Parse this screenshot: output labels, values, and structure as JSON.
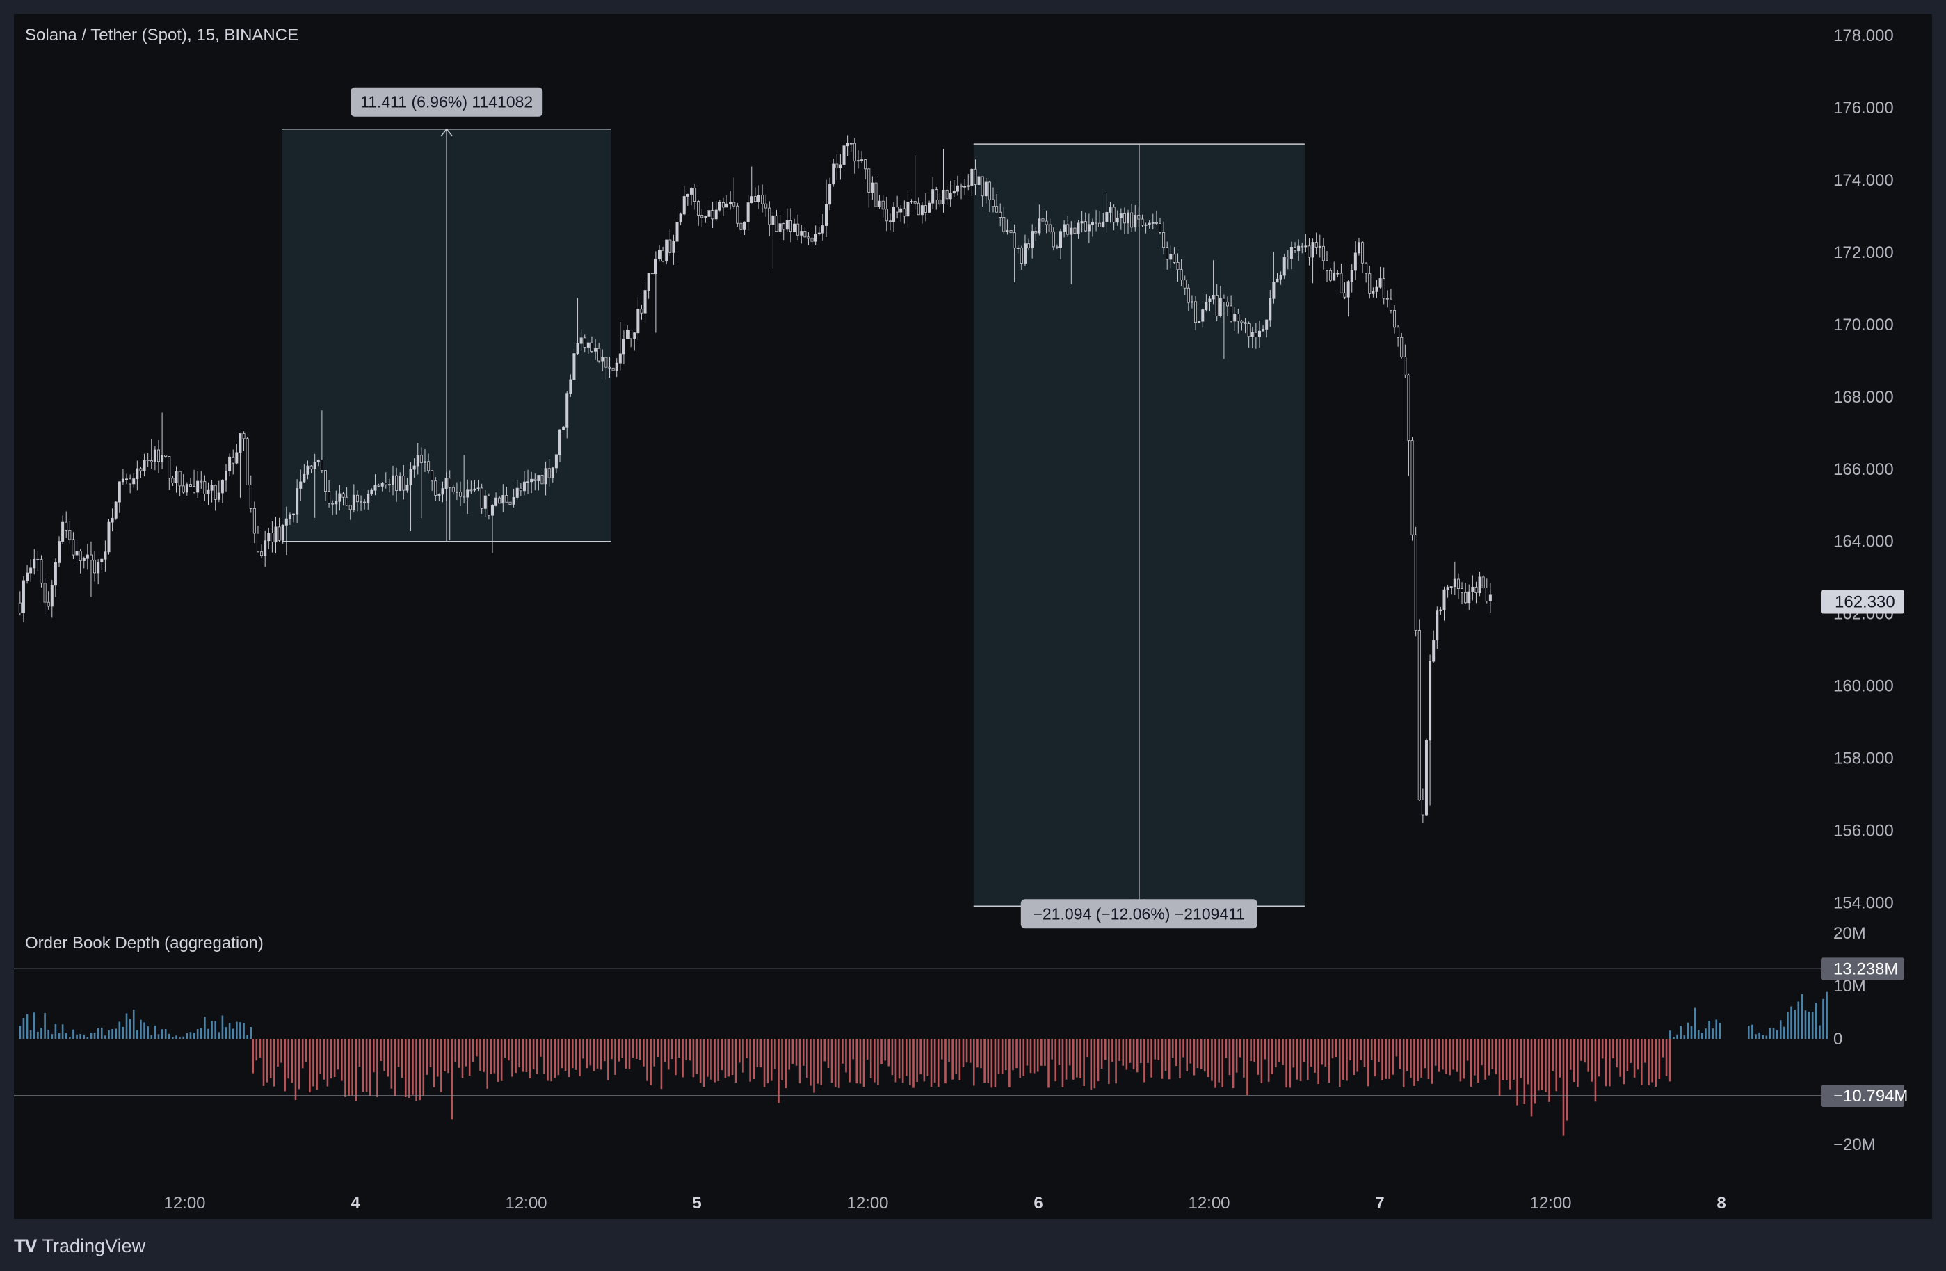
{
  "app": {
    "brand": "TradingView",
    "brand_logo": "TV",
    "symbol_title": "Solana / Tether (Spot), 15, BINANCE"
  },
  "colors": {
    "background": "#0e0f13",
    "frame": "#1e222d",
    "candle": "#c9ccd4",
    "measure_box": "#19242a",
    "measure_line": "#c8cbd2",
    "depth_bid": "#4a82a8",
    "depth_ask": "#b5565a",
    "pill": "#b2b5be",
    "pill_dark": "#5d606b"
  },
  "chart_data": [
    {
      "type": "candlestick",
      "title": "Solana / Tether (Spot), 15, BINANCE",
      "y_axis_ticks": [
        "178.000",
        "176.000",
        "174.000",
        "172.000",
        "170.000",
        "168.000",
        "166.000",
        "164.000",
        "162.000",
        "160.000",
        "158.000",
        "156.000",
        "154.000"
      ],
      "ylim": [
        153.2,
        178.6
      ],
      "x_axis_ticks": [
        {
          "label": "12:00",
          "t": 0.5,
          "bold": false
        },
        {
          "label": "4",
          "t": 1.0,
          "bold": true
        },
        {
          "label": "12:00",
          "t": 1.5,
          "bold": false
        },
        {
          "label": "5",
          "t": 2.0,
          "bold": true
        },
        {
          "label": "12:00",
          "t": 2.5,
          "bold": false
        },
        {
          "label": "6",
          "t": 3.0,
          "bold": true
        },
        {
          "label": "12:00",
          "t": 3.5,
          "bold": false
        },
        {
          "label": "7",
          "t": 4.0,
          "bold": true
        },
        {
          "label": "12:00",
          "t": 4.5,
          "bold": false
        },
        {
          "label": "8",
          "t": 5.0,
          "bold": true
        }
      ],
      "x_range_days": [
        0.018,
        4.33
      ],
      "last_price": "162.330",
      "price_path": [
        [
          0.02,
          162.8
        ],
        [
          0.07,
          163.4
        ],
        [
          0.1,
          162.0
        ],
        [
          0.14,
          164.7
        ],
        [
          0.18,
          163.6
        ],
        [
          0.25,
          163.2
        ],
        [
          0.3,
          165.4
        ],
        [
          0.35,
          165.6
        ],
        [
          0.42,
          166.5
        ],
        [
          0.48,
          165.6
        ],
        [
          0.55,
          165.4
        ],
        [
          0.6,
          165.2
        ],
        [
          0.63,
          166.1
        ],
        [
          0.67,
          166.9
        ],
        [
          0.71,
          163.5
        ],
        [
          0.75,
          164.2
        ],
        [
          0.79,
          164.2
        ],
        [
          0.84,
          165.6
        ],
        [
          0.88,
          166.4
        ],
        [
          0.92,
          165.2
        ],
        [
          0.97,
          165.0
        ],
        [
          1.03,
          165.2
        ],
        [
          1.09,
          165.8
        ],
        [
          1.14,
          165.5
        ],
        [
          1.19,
          166.4
        ],
        [
          1.24,
          165.4
        ],
        [
          1.29,
          165.6
        ],
        [
          1.35,
          165.3
        ],
        [
          1.39,
          164.9
        ],
        [
          1.44,
          165.2
        ],
        [
          1.49,
          165.4
        ],
        [
          1.54,
          165.8
        ],
        [
          1.58,
          166.1
        ],
        [
          1.61,
          167.4
        ],
        [
          1.64,
          169.3
        ],
        [
          1.68,
          169.7
        ],
        [
          1.71,
          169.1
        ],
        [
          1.75,
          168.6
        ],
        [
          1.79,
          169.5
        ],
        [
          1.83,
          170.3
        ],
        [
          1.87,
          171.6
        ],
        [
          1.91,
          172.1
        ],
        [
          1.94,
          172.5
        ],
        [
          1.97,
          173.8
        ],
        [
          2.01,
          173.2
        ],
        [
          2.05,
          173.0
        ],
        [
          2.09,
          173.6
        ],
        [
          2.13,
          172.8
        ],
        [
          2.17,
          173.5
        ],
        [
          2.22,
          172.9
        ],
        [
          2.27,
          172.6
        ],
        [
          2.31,
          172.4
        ],
        [
          2.36,
          172.6
        ],
        [
          2.4,
          174.2
        ],
        [
          2.44,
          174.9
        ],
        [
          2.48,
          174.4
        ],
        [
          2.52,
          173.6
        ],
        [
          2.56,
          173.0
        ],
        [
          2.6,
          173.1
        ],
        [
          2.65,
          173.3
        ],
        [
          2.7,
          173.5
        ],
        [
          2.75,
          173.9
        ],
        [
          2.8,
          174.1
        ],
        [
          2.86,
          173.6
        ],
        [
          2.9,
          172.8
        ],
        [
          2.95,
          171.9
        ],
        [
          3.0,
          172.8
        ],
        [
          3.05,
          172.2
        ],
        [
          3.1,
          172.8
        ],
        [
          3.15,
          172.5
        ],
        [
          3.2,
          173.1
        ],
        [
          3.25,
          173.0
        ],
        [
          3.3,
          172.7
        ],
        [
          3.35,
          172.6
        ],
        [
          3.38,
          171.9
        ],
        [
          3.42,
          171.0
        ],
        [
          3.46,
          170.2
        ],
        [
          3.5,
          170.6
        ],
        [
          3.55,
          170.4
        ],
        [
          3.59,
          170.1
        ],
        [
          3.63,
          169.6
        ],
        [
          3.67,
          170.3
        ],
        [
          3.71,
          171.6
        ],
        [
          3.76,
          172.2
        ],
        [
          3.81,
          172.1
        ],
        [
          3.86,
          171.4
        ],
        [
          3.9,
          170.9
        ],
        [
          3.94,
          172.4
        ],
        [
          3.97,
          170.9
        ],
        [
          4.0,
          171.2
        ],
        [
          4.03,
          170.3
        ],
        [
          4.06,
          169.7
        ],
        [
          4.08,
          167.9
        ],
        [
          4.11,
          160.4
        ],
        [
          4.12,
          154.2
        ],
        [
          4.13,
          157.5
        ],
        [
          4.15,
          161.2
        ],
        [
          4.18,
          162.4
        ],
        [
          4.22,
          162.7
        ],
        [
          4.26,
          162.4
        ],
        [
          4.29,
          162.8
        ],
        [
          4.33,
          162.3
        ]
      ],
      "annotations": [
        {
          "label": "11.411 (6.96%) 1141082",
          "x_start": 0.786,
          "x_end": 2.74,
          "y_low": 164.0,
          "y_high": 175.411
        },
        {
          "label": "−21.094 (−12.06%) −2109411",
          "x_start": 2.81,
          "x_end": 4.78,
          "y_low": 153.906,
          "y_high": 175.0
        }
      ]
    },
    {
      "type": "bar",
      "title": "Order Book Depth (aggregation)",
      "y_axis_ticks": [
        "20M",
        "10M",
        "0",
        "−20M"
      ],
      "ylim": [
        -23.5,
        20.0
      ],
      "level_high": "13.238M",
      "level_low": "−10.794M",
      "bid_segments": [
        [
          0.018,
          0.7,
          6.0
        ],
        [
          4.85,
          5.0,
          9.0
        ],
        [
          5.08,
          5.31,
          9.5
        ]
      ],
      "ask_segments": [
        [
          0.7,
          4.85,
          -9.5
        ]
      ],
      "unit": "M"
    }
  ]
}
